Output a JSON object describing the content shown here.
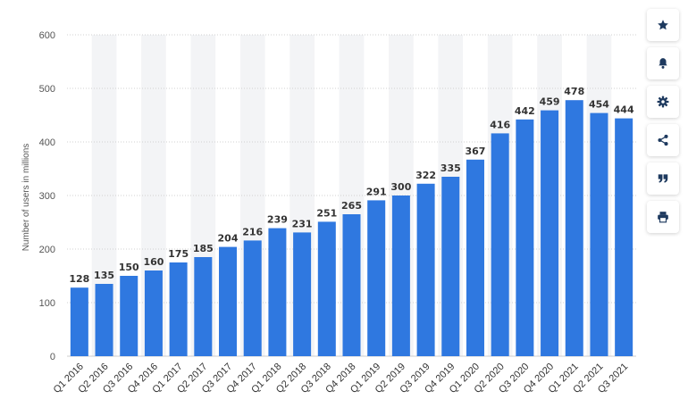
{
  "chart_data": {
    "type": "bar",
    "ylabel": "Number of users in millions",
    "ylim": [
      0,
      600
    ],
    "yticks": [
      "0",
      "100",
      "200",
      "300",
      "400",
      "500",
      "600"
    ],
    "grid": true,
    "categories": [
      "Q1 2016",
      "Q2 2016",
      "Q3 2016",
      "Q4 2016",
      "Q1 2017",
      "Q2 2017",
      "Q3 2017",
      "Q4 2017",
      "Q1 2018",
      "Q2 2018",
      "Q3 2018",
      "Q4 2018",
      "Q1 2019",
      "Q2 2019",
      "Q3 2019",
      "Q4 2019",
      "Q1 2020",
      "Q2 2020",
      "Q3 2020",
      "Q4 2020",
      "Q1 2021",
      "Q2 2021",
      "Q3 2021"
    ],
    "values": [
      128,
      135,
      150,
      160,
      175,
      185,
      204,
      216,
      239,
      231,
      251,
      265,
      291,
      300,
      322,
      335,
      367,
      416,
      442,
      459,
      478,
      454,
      444
    ],
    "bar_color": "#2f78e0"
  },
  "toolbar": [
    {
      "icon": "star-icon"
    },
    {
      "icon": "bell-icon"
    },
    {
      "icon": "gear-icon"
    },
    {
      "icon": "share-icon"
    },
    {
      "icon": "quote-icon"
    },
    {
      "icon": "print-icon"
    }
  ],
  "colors": {
    "icon": "#1e3a5f",
    "band": "#f3f4f6",
    "grid": "#d0d0d0"
  }
}
